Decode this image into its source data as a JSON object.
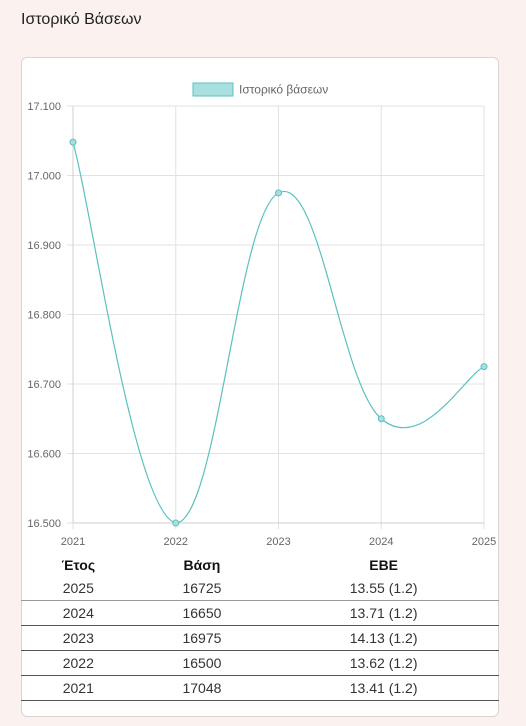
{
  "page": {
    "title": "Ιστορικό Βάσεων"
  },
  "chart_data": {
    "type": "line",
    "title": "",
    "xlabel": "",
    "ylabel": "",
    "legend": {
      "label": "Ιστορικό βάσεων",
      "position": "top"
    },
    "x": [
      "2021",
      "2022",
      "2023",
      "2024",
      "2025"
    ],
    "series": [
      {
        "name": "Ιστορικό βάσεων",
        "values": [
          17048,
          16500,
          16975,
          16650,
          16725
        ]
      }
    ],
    "ylim": [
      16500,
      17100
    ],
    "yticks": [
      "17.100",
      "17.000",
      "16.900",
      "16.800",
      "16.700",
      "16.600",
      "16.500"
    ],
    "grid": true,
    "colors": {
      "line": "#5bc0c0",
      "fill": "#a8e0e0",
      "grid": "#e2e2e2"
    }
  },
  "table": {
    "headers": [
      "Έτος",
      "Βάση",
      "ΕΒΕ"
    ],
    "rows": [
      [
        "2025",
        "16725",
        "13.55 (1.2)"
      ],
      [
        "2024",
        "16650",
        "13.71 (1.2)"
      ],
      [
        "2023",
        "16975",
        "14.13 (1.2)"
      ],
      [
        "2022",
        "16500",
        "13.62 (1.2)"
      ],
      [
        "2021",
        "17048",
        "13.41 (1.2)"
      ]
    ]
  }
}
